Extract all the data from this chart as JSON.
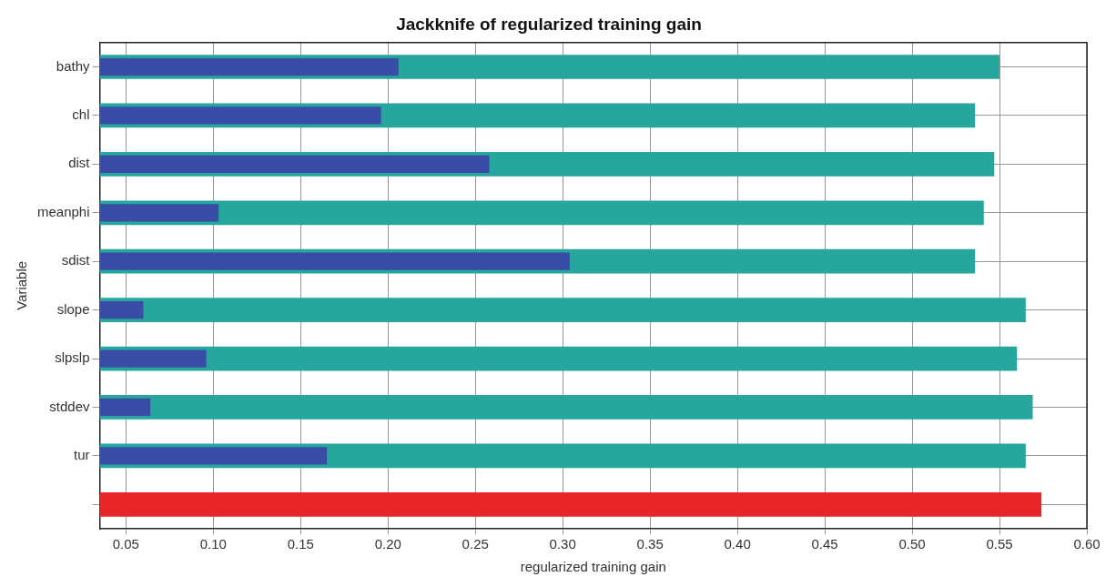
{
  "chart_data": {
    "type": "bar",
    "orientation": "horizontal",
    "title": "Jackknife of regularized training gain",
    "xlabel": "regularized training gain",
    "ylabel": "Variable",
    "categories": [
      "bathy",
      "chl",
      "dist",
      "meanphi",
      "sdist",
      "slope",
      "slpslp",
      "stddev",
      "tur",
      null
    ],
    "series": [
      {
        "color": "#26a69d",
        "values": [
          0.55,
          0.536,
          0.547,
          0.541,
          0.536,
          0.565,
          0.56,
          0.569,
          0.565,
          null
        ]
      },
      {
        "color": "#3a4da6",
        "values": [
          0.206,
          0.196,
          0.258,
          0.103,
          0.304,
          0.06,
          0.096,
          0.064,
          0.165,
          null
        ]
      },
      {
        "color": "#e8262a",
        "values": [
          null,
          null,
          null,
          null,
          null,
          null,
          null,
          null,
          null,
          0.574
        ]
      }
    ],
    "xlim": [
      0.035,
      0.6
    ],
    "xticks": [
      0.05,
      {
        "value": 0.1,
        "label": "0.10"
      },
      0.15,
      {
        "value": 0.2,
        "label": "0.20"
      },
      0.25,
      {
        "value": 0.3,
        "label": "0.30"
      },
      0.35,
      {
        "value": 0.4,
        "label": "0.40"
      },
      0.45,
      {
        "value": 0.5,
        "label": "0.50"
      },
      0.55,
      {
        "value": 0.6,
        "label": "0.60"
      }
    ],
    "grid": true,
    "legend": false
  }
}
